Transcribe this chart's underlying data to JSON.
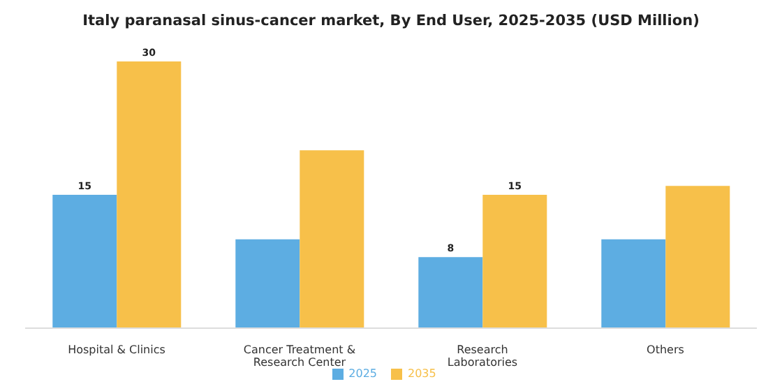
{
  "chart_data": {
    "type": "bar",
    "title": "Italy paranasal sinus-cancer market, By End User, 2025-2035 (USD Million)",
    "categories": [
      "Hospital & Clinics",
      "Cancer Treatment & Research Center",
      "Research Laboratories",
      "Others"
    ],
    "series": [
      {
        "name": "2025",
        "color": "#5dade2",
        "values": [
          15,
          10,
          8,
          10
        ],
        "value_labels": [
          "15",
          null,
          "8",
          null
        ]
      },
      {
        "name": "2035",
        "color": "#f7c04a",
        "values": [
          30,
          20,
          15,
          16
        ],
        "value_labels": [
          "30",
          null,
          "15",
          null
        ]
      }
    ],
    "legend": "bottom",
    "grid": false
  }
}
